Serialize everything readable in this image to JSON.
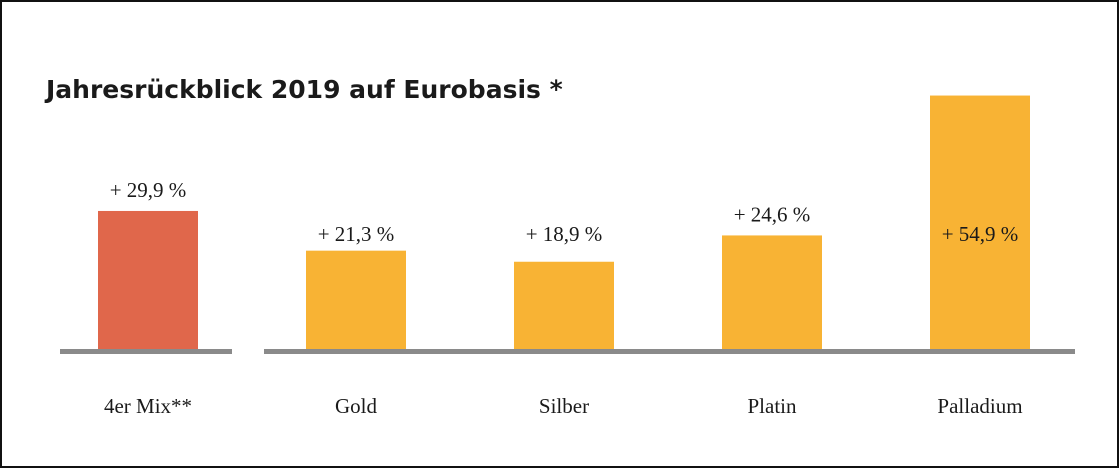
{
  "chart_data": {
    "type": "bar",
    "title": "Jahresrückblick 2019 auf Eurobasis *",
    "categories": [
      "4er Mix**",
      "Gold",
      "Silber",
      "Platin",
      "Palladium"
    ],
    "values": [
      29.9,
      21.3,
      18.9,
      24.6,
      54.9
    ],
    "value_labels": [
      "+ 29,9 %",
      "+ 21,3 %",
      "+ 18,9 %",
      "+ 24,6 %",
      "+ 54,9 %"
    ],
    "colors": [
      "#e0674b",
      "#f8b334",
      "#f8b334",
      "#f8b334",
      "#f8b334"
    ],
    "ylim": [
      0,
      60
    ]
  }
}
